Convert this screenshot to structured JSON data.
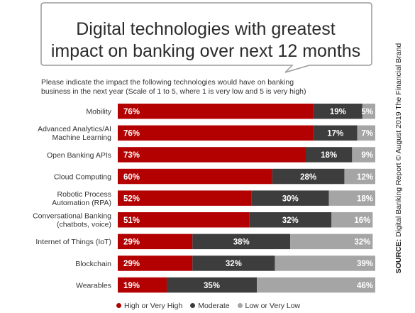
{
  "title_lines": [
    "Digital technologies with greatest",
    "impact on banking over next 12 months"
  ],
  "subtitle_lines": [
    "Please indicate the impact the following technologies would have on banking",
    "business in the next year (Scale of 1 to 5, where 1 is very low and 5 is very high)"
  ],
  "source": {
    "label": "SOURCE:",
    "text": "Digital Banking Report © August 2019 The Financial Brand"
  },
  "colors": {
    "high": "#b30000",
    "moderate": "#3d3d3d",
    "low": "#a5a5a5"
  },
  "chart_data": {
    "type": "bar",
    "stacked": true,
    "orientation": "horizontal",
    "xlim": [
      0,
      100
    ],
    "unit": "%",
    "categories": [
      [
        "Mobility"
      ],
      [
        "Advanced Analytics/AI",
        "Machine Learning"
      ],
      [
        "Open Banking APIs"
      ],
      [
        "Cloud Computing"
      ],
      [
        "Robotic Process",
        "Automation (RPA)"
      ],
      [
        "Conversational Banking",
        "(chatbots, voice)"
      ],
      [
        "Internet of Things (IoT)"
      ],
      [
        "Blockchain"
      ],
      [
        "Wearables"
      ]
    ],
    "series": [
      {
        "name": "High or Very High",
        "values": [
          76,
          76,
          73,
          60,
          52,
          51,
          29,
          29,
          19
        ]
      },
      {
        "name": "Moderate",
        "values": [
          19,
          17,
          18,
          28,
          30,
          32,
          38,
          32,
          35
        ]
      },
      {
        "name": "Low or Very Low",
        "values": [
          5,
          7,
          9,
          12,
          18,
          16,
          32,
          39,
          46
        ]
      }
    ],
    "legend_position": "bottom"
  }
}
